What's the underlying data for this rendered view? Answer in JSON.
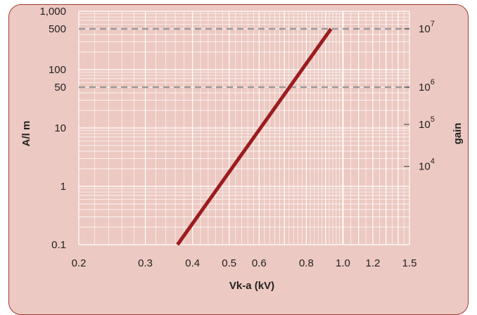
{
  "chart_data": {
    "type": "line",
    "xlabel": "Vk-a (kV)",
    "ylabel": "A/l m",
    "y2label": "gain",
    "x_scale": "log",
    "y_scale": "log",
    "y2_scale": "log",
    "xlim": [
      0.2,
      1.5
    ],
    "ylim": [
      0.1,
      1000
    ],
    "x_ticks": [
      0.2,
      0.3,
      0.4,
      0.5,
      0.6,
      0.8,
      1.0,
      1.2,
      1.5
    ],
    "x_tick_labels": [
      "0.2",
      "0.3",
      "0.4",
      "0.5",
      "0.6",
      "0.8",
      "1.0",
      "1.2",
      "1.5"
    ],
    "y_ticks": [
      0.1,
      1,
      10,
      50,
      100,
      500,
      1000
    ],
    "y_tick_labels": [
      "0.1",
      "1",
      "10",
      "50",
      "100",
      "500",
      "1,000"
    ],
    "y2_ticks": [
      {
        "base": "10",
        "exp": "4",
        "gain": 10000,
        "y": 2.2
      },
      {
        "base": "10",
        "exp": "5",
        "gain": 100000,
        "y": 11.5
      },
      {
        "base": "10",
        "exp": "6",
        "gain": 1000000,
        "y": 50
      },
      {
        "base": "10",
        "exp": "7",
        "gain": 10000000,
        "y": 500
      }
    ],
    "reference_lines": [
      {
        "y": 50,
        "style": "dashed",
        "color": "#9a9a9a"
      },
      {
        "y": 500,
        "style": "dashed",
        "color": "#9a9a9a"
      }
    ],
    "series": [
      {
        "x": [
          0.365,
          0.93
        ],
        "y": [
          0.1,
          500
        ],
        "color": "#9b1c1f"
      }
    ],
    "grid": true,
    "colors": {
      "panel": "#ecc9c2",
      "border": "#a33a35",
      "grid": "#ffffff",
      "line": "#9b1c1f",
      "dashed": "#9a9a9a"
    }
  }
}
